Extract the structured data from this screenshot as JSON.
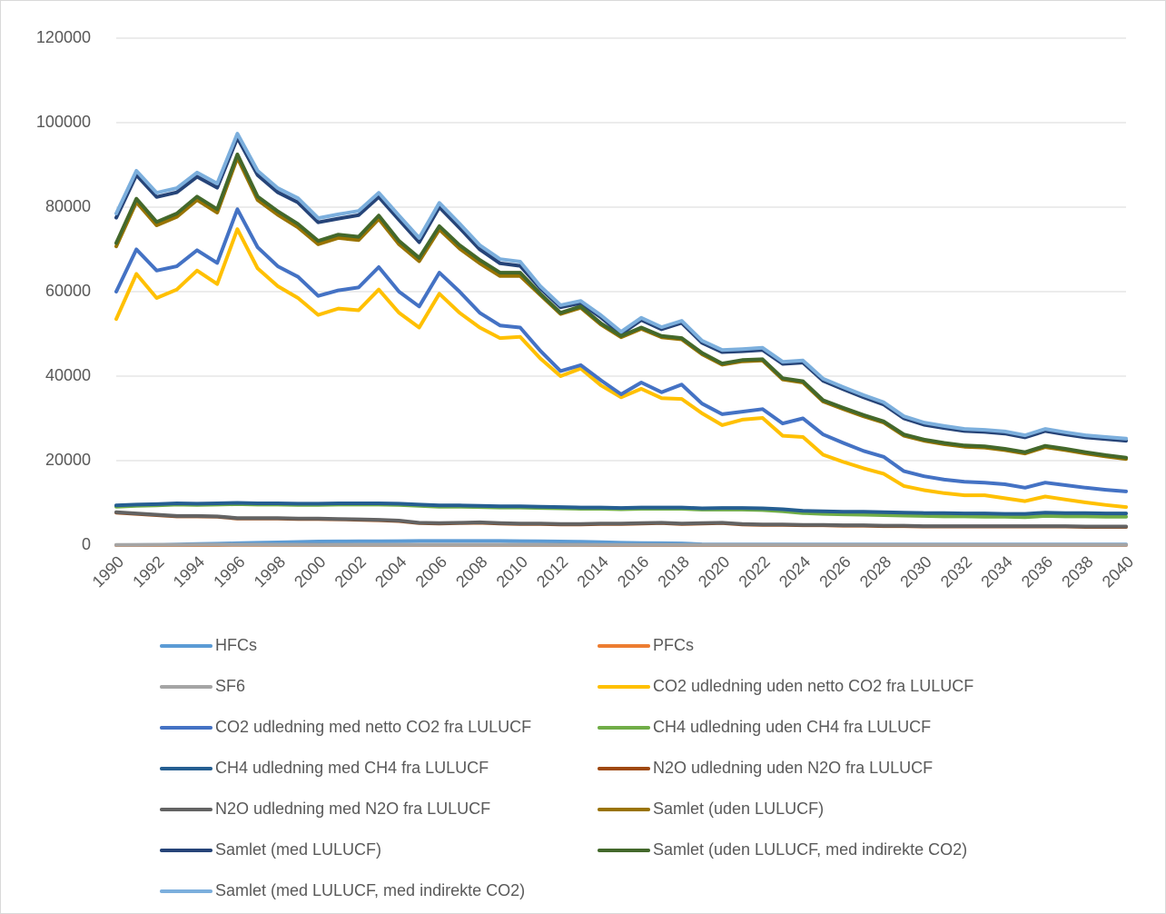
{
  "chart_data": {
    "type": "line",
    "categories": [
      "1990",
      null,
      "1992",
      null,
      "1994",
      null,
      "1996",
      null,
      "1998",
      null,
      "2000",
      null,
      "2002",
      null,
      "2004",
      null,
      "2006",
      null,
      "2008",
      null,
      "2010",
      null,
      "2012",
      null,
      "2014",
      null,
      "2016",
      null,
      "2018",
      null,
      "2020",
      null,
      "2022",
      null,
      "2024",
      null,
      "2026",
      null,
      "2028",
      null,
      "2030",
      null,
      "2032",
      null,
      "2034",
      null,
      "2036",
      null,
      "2038",
      null,
      "2040"
    ],
    "ylim": [
      0,
      120000
    ],
    "yticks": [
      0,
      20000,
      40000,
      60000,
      80000,
      100000,
      120000
    ],
    "grid": true,
    "series": [
      {
        "name": "HFCs",
        "color": "#5b9bd5",
        "values": [
          0,
          30,
          80,
          150,
          250,
          350,
          450,
          550,
          650,
          750,
          850,
          880,
          900,
          920,
          950,
          980,
          1000,
          1000,
          1000,
          1000,
          950,
          900,
          850,
          800,
          700,
          550,
          500,
          450,
          400,
          200,
          150,
          150,
          150,
          150,
          150,
          150,
          150,
          150,
          150,
          150,
          150,
          150,
          150,
          150,
          150,
          150,
          150,
          150,
          150,
          150,
          150
        ]
      },
      {
        "name": "PFCs",
        "color": "#ed7d31",
        "values": [
          0,
          0,
          0,
          0,
          0,
          0,
          20,
          20,
          20,
          20,
          20,
          20,
          20,
          20,
          20,
          20,
          20,
          20,
          20,
          20,
          20,
          20,
          20,
          20,
          10,
          10,
          10,
          10,
          10,
          10,
          10,
          10,
          10,
          10,
          10,
          10,
          10,
          10,
          10,
          10,
          10,
          10,
          10,
          10,
          10,
          10,
          10,
          10,
          10,
          10,
          10
        ]
      },
      {
        "name": "SF6",
        "color": "#a5a5a5",
        "values": [
          60,
          70,
          80,
          90,
          100,
          110,
          110,
          100,
          90,
          80,
          70,
          60,
          50,
          50,
          40,
          40,
          40,
          40,
          40,
          40,
          40,
          40,
          40,
          40,
          40,
          40,
          40,
          40,
          40,
          40,
          40,
          40,
          40,
          40,
          40,
          40,
          40,
          40,
          40,
          40,
          40,
          40,
          40,
          40,
          40,
          40,
          40,
          40,
          40,
          40,
          40
        ]
      },
      {
        "name": "CO2 udledning uden netto CO2 fra LULUCF",
        "color": "#ffc000",
        "values": [
          53500,
          64200,
          58500,
          60500,
          65000,
          61800,
          74800,
          65500,
          61300,
          58500,
          54500,
          56000,
          55600,
          60500,
          55000,
          51500,
          59500,
          55000,
          51500,
          49000,
          49300,
          44200,
          40000,
          41800,
          37800,
          35000,
          37000,
          34800,
          34600,
          31200,
          28400,
          29700,
          30100,
          25900,
          25600,
          21400,
          19700,
          18200,
          16900,
          14000,
          13000,
          12300,
          11800,
          11800,
          11100,
          10400,
          11500,
          10800,
          10100,
          9500,
          9000
        ]
      },
      {
        "name": "CO2 udledning med netto CO2 fra LULUCF",
        "color": "#4472c4",
        "values": [
          60000,
          70000,
          65000,
          66000,
          69800,
          66800,
          79500,
          70500,
          66000,
          63500,
          59000,
          60300,
          61000,
          65800,
          60000,
          56500,
          64500,
          60000,
          55000,
          52000,
          51500,
          46000,
          41200,
          42600,
          39000,
          35700,
          38500,
          36200,
          38000,
          33500,
          31000,
          31600,
          32200,
          28800,
          30000,
          26200,
          24200,
          22300,
          20900,
          17500,
          16300,
          15500,
          15000,
          14800,
          14400,
          13600,
          14800,
          14200,
          13600,
          13100,
          12700
        ]
      },
      {
        "name": "CH4 udledning uden CH4 fra LULUCF",
        "color": "#70ad47",
        "values": [
          9100,
          9300,
          9400,
          9600,
          9500,
          9600,
          9700,
          9600,
          9600,
          9500,
          9500,
          9600,
          9600,
          9600,
          9500,
          9300,
          9100,
          9100,
          9000,
          8900,
          8900,
          8800,
          8700,
          8600,
          8600,
          8500,
          8600,
          8600,
          8600,
          8400,
          8400,
          8400,
          8300,
          8000,
          7600,
          7400,
          7300,
          7200,
          7100,
          7000,
          6900,
          6800,
          6800,
          6700,
          6700,
          6600,
          6900,
          6800,
          6800,
          6700,
          6700
        ]
      },
      {
        "name": "CH4 udledning med CH4 fra LULUCF",
        "color": "#255e91",
        "values": [
          9400,
          9600,
          9700,
          9900,
          9800,
          9900,
          10000,
          9900,
          9900,
          9800,
          9800,
          9900,
          9900,
          9900,
          9800,
          9600,
          9400,
          9400,
          9300,
          9200,
          9200,
          9100,
          9000,
          8900,
          8900,
          8800,
          8900,
          8900,
          8900,
          8700,
          8800,
          8800,
          8700,
          8500,
          8100,
          8000,
          7900,
          7900,
          7800,
          7700,
          7600,
          7600,
          7500,
          7500,
          7400,
          7400,
          7700,
          7600,
          7600,
          7500,
          7500
        ]
      },
      {
        "name": "N2O udledning uden N2O fra LULUCF",
        "color": "#9e480e",
        "values": [
          7700,
          7400,
          7100,
          6800,
          6800,
          6700,
          6300,
          6300,
          6300,
          6200,
          6200,
          6100,
          6000,
          5900,
          5700,
          5200,
          5100,
          5200,
          5300,
          5100,
          5000,
          5000,
          4900,
          4900,
          5000,
          5000,
          5100,
          5200,
          5000,
          5100,
          5200,
          4900,
          4800,
          4800,
          4700,
          4700,
          4600,
          4600,
          4500,
          4500,
          4400,
          4400,
          4400,
          4400,
          4400,
          4400,
          4400,
          4400,
          4300,
          4300,
          4300
        ]
      },
      {
        "name": "N2O udledning med N2O fra LULUCF",
        "color": "#636363",
        "values": [
          7800,
          7500,
          7200,
          6900,
          6900,
          6800,
          6400,
          6400,
          6400,
          6300,
          6300,
          6200,
          6100,
          6000,
          5800,
          5300,
          5200,
          5300,
          5400,
          5200,
          5100,
          5100,
          5000,
          5000,
          5100,
          5100,
          5200,
          5300,
          5100,
          5200,
          5300,
          5000,
          4900,
          4900,
          4800,
          4800,
          4700,
          4700,
          4600,
          4600,
          4500,
          4500,
          4500,
          4500,
          4500,
          4500,
          4500,
          4500,
          4400,
          4400,
          4400
        ]
      },
      {
        "name": "Samlet (uden LULUCF)",
        "color": "#997300",
        "values": [
          70700,
          81200,
          75700,
          77700,
          81700,
          78700,
          91700,
          81700,
          78200,
          75200,
          71200,
          72700,
          72200,
          77200,
          71200,
          67200,
          74700,
          70200,
          66700,
          63700,
          63700,
          59200,
          54700,
          56200,
          52200,
          49200,
          51200,
          49200,
          48700,
          45200,
          42700,
          43500,
          43700,
          39200,
          38500,
          34000,
          32200,
          30500,
          29000,
          25900,
          24700,
          23900,
          23300,
          23100,
          22500,
          21700,
          23200,
          22500,
          21700,
          21000,
          20400
        ]
      },
      {
        "name": "Samlet (med LULUCF)",
        "color": "#264478",
        "values": [
          77500,
          87600,
          82400,
          83500,
          87200,
          84600,
          96400,
          87600,
          83500,
          81100,
          76400,
          77300,
          78100,
          82400,
          77000,
          71700,
          80000,
          75100,
          70000,
          66700,
          66100,
          60800,
          56300,
          57300,
          53900,
          50000,
          53300,
          51100,
          52600,
          47900,
          45700,
          45900,
          46200,
          42900,
          43200,
          38900,
          36900,
          35000,
          33300,
          30000,
          28500,
          27700,
          27000,
          26800,
          26400,
          25500,
          27000,
          26200,
          25500,
          25100,
          24700
        ]
      },
      {
        "name": "Samlet (uden LULUCF, med indirekte CO2)",
        "color": "#43682b",
        "values": [
          71500,
          82000,
          76500,
          78500,
          82500,
          79500,
          92500,
          82500,
          79000,
          76000,
          72000,
          73500,
          73000,
          78000,
          72000,
          68000,
          75500,
          71000,
          67500,
          64500,
          64500,
          59500,
          55000,
          56500,
          52500,
          49500,
          51500,
          49500,
          49000,
          45500,
          43000,
          43800,
          44000,
          39500,
          38800,
          34300,
          32500,
          30800,
          29300,
          26200,
          25000,
          24200,
          23600,
          23400,
          22800,
          22000,
          23500,
          22800,
          22000,
          21300,
          20700
        ]
      },
      {
        "name": "Samlet (med LULUCF, med indirekte CO2)",
        "color": "#7cafdd",
        "values": [
          78500,
          88600,
          83400,
          84500,
          88200,
          85600,
          97400,
          88600,
          84500,
          82100,
          77400,
          78300,
          79100,
          83400,
          78000,
          72700,
          81000,
          76100,
          71000,
          67700,
          67100,
          61300,
          56800,
          57800,
          54400,
          50500,
          53800,
          51600,
          53100,
          48400,
          46200,
          46400,
          46700,
          43400,
          43700,
          39400,
          37400,
          35500,
          33800,
          30500,
          29000,
          28200,
          27500,
          27300,
          26900,
          26000,
          27500,
          26700,
          26000,
          25600,
          25200
        ]
      }
    ]
  }
}
